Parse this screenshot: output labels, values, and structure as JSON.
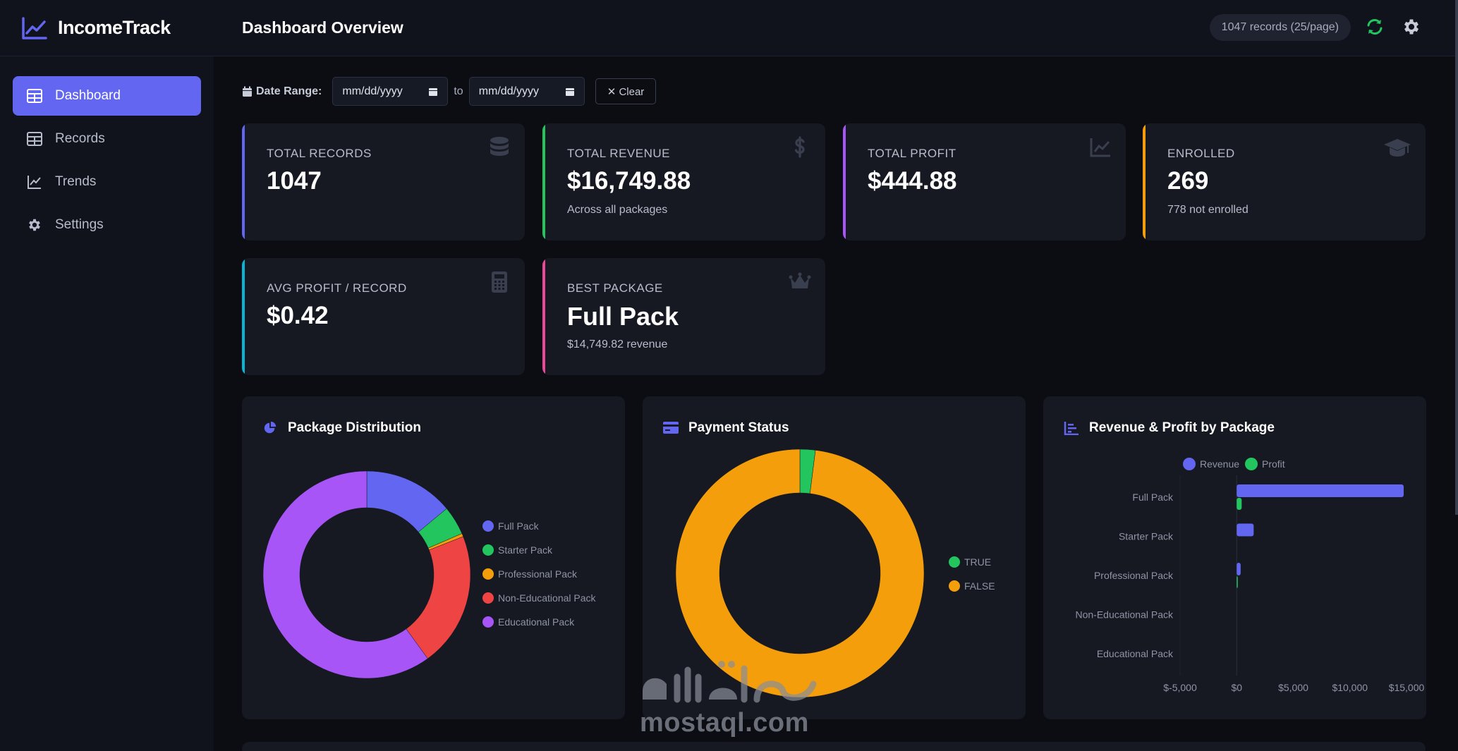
{
  "brand": {
    "name": "IncomeTrack"
  },
  "sidebar": {
    "items": [
      {
        "label": "Dashboard",
        "icon": "table-icon",
        "active": true
      },
      {
        "label": "Records",
        "icon": "table-icon"
      },
      {
        "label": "Trends",
        "icon": "line-chart-icon"
      },
      {
        "label": "Settings",
        "icon": "gear-icon"
      }
    ]
  },
  "header": {
    "title": "Dashboard Overview",
    "records_pill": "1047 records (25/page)"
  },
  "date_range": {
    "label": "Date Range:",
    "from_value": "mm/dd/yyyy",
    "to_label": "to",
    "to_value": "mm/dd/yyyy",
    "clear_label": "✕ Clear"
  },
  "stats": [
    {
      "label": "Total Records",
      "value": "1047",
      "sub": "",
      "accent": "#6366f1",
      "icon": "database-icon"
    },
    {
      "label": "Total Revenue",
      "value": "$16,749.88",
      "sub": "Across all packages",
      "accent": "#22c55e",
      "icon": "dollar-icon"
    },
    {
      "label": "Total Profit",
      "value": "$444.88",
      "sub": "",
      "accent": "#a855f7",
      "icon": "line-chart-icon"
    },
    {
      "label": "Enrolled",
      "value": "269",
      "sub": "778 not enrolled",
      "accent": "#f59e0b",
      "icon": "graduation-cap-icon"
    },
    {
      "label": "Avg Profit / Record",
      "value": "$0.42",
      "sub": "",
      "accent": "#06b6d4",
      "icon": "calculator-icon"
    },
    {
      "label": "Best Package",
      "value": "Full Pack",
      "sub": "$14,749.82 revenue",
      "accent": "#ec4899",
      "icon": "crown-icon"
    }
  ],
  "panels": {
    "distribution_title": "Package Distribution",
    "payment_title": "Payment Status",
    "revenue_title": "Revenue & Profit by Package"
  },
  "chart_data": [
    {
      "type": "pie",
      "title": "Package Distribution",
      "categories": [
        "Full Pack",
        "Starter Pack",
        "Professional Pack",
        "Non-Educational Pack",
        "Educational Pack"
      ],
      "values": [
        14,
        4.5,
        0.5,
        21,
        60
      ],
      "colors": [
        "#6366f1",
        "#22c55e",
        "#f59e0b",
        "#ef4444",
        "#a855f7"
      ],
      "legend": "right"
    },
    {
      "type": "pie",
      "title": "Payment Status",
      "categories": [
        "TRUE",
        "FALSE"
      ],
      "values": [
        2,
        98
      ],
      "colors": [
        "#22c55e",
        "#f59e0b"
      ],
      "legend": "right"
    },
    {
      "type": "bar",
      "orientation": "horizontal",
      "title": "Revenue & Profit by Package",
      "categories": [
        "Full Pack",
        "Starter Pack",
        "Professional Pack",
        "Non-Educational Pack",
        "Educational Pack"
      ],
      "series": [
        {
          "name": "Revenue",
          "values": [
            14750,
            1500,
            350,
            0,
            0
          ],
          "color": "#6366f1"
        },
        {
          "name": "Profit",
          "values": [
            440,
            0,
            5,
            0,
            0
          ],
          "color": "#22c55e"
        }
      ],
      "xticks": [
        "$-5,000",
        "$0",
        "$5,000",
        "$10,000",
        "$15,000"
      ],
      "xlim": [
        -5000,
        15000
      ],
      "legend": "top"
    }
  ],
  "watermark": {
    "text": "mostaql.com"
  }
}
